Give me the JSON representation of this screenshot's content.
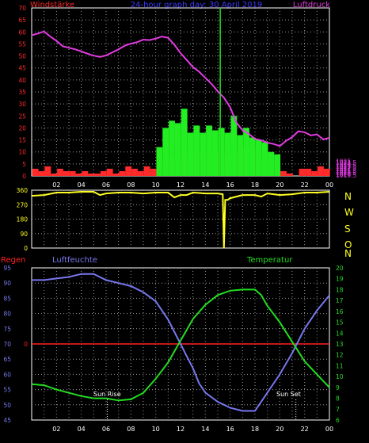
{
  "colors": {
    "background": "#000000",
    "frame": "#ffffff",
    "grid": "#9a9a9a",
    "wind_speed": "#ff2a2a",
    "wind_gust": "#22ee22",
    "pressure": "#e23be2",
    "wind_direction": "#ffff22",
    "humidity": "#7777ee",
    "temperature": "#22dd22",
    "rain": "#ff2020",
    "now_marker": "#22dd22",
    "date_title": "#3a3aff",
    "direction_letters": "#ffff22",
    "sun_labels": "#ffffff"
  },
  "header": {
    "wind_label": "Windstärke",
    "title": "24-hour graph day: 30 April 2019",
    "pressure_label": "Luftdruck"
  },
  "lower_header": {
    "rain_label": "Regen",
    "humidity_label": "Luftfeuchte",
    "temperature_label": "Temperatur"
  },
  "annotations": {
    "sun_rise": "Sun Rise",
    "sun_set": "Sun Set"
  },
  "direction_letters": [
    "N",
    "W",
    "S",
    "O",
    "N"
  ],
  "chart_data": [
    {
      "id": "wind-pressure",
      "type": "bar",
      "xlabel": "",
      "xlim": [
        0,
        24
      ],
      "x_ticks": [
        "02",
        "04",
        "06",
        "08",
        "10",
        "12",
        "14",
        "16",
        "18",
        "20",
        "22",
        "00"
      ],
      "ylim_left": [
        0,
        70
      ],
      "y_ticks_left": [
        "0",
        "5",
        "10",
        "15",
        "20",
        "25",
        "30",
        "35",
        "40",
        "45",
        "50",
        "55",
        "60",
        "65",
        "70"
      ],
      "ylabel_left": "Windstärke",
      "ylim_right": [
        1019.25,
        1085.25
      ],
      "y_ticks_right": [
        "1019.5",
        "1020",
        "1020.5",
        "1021",
        "1021.5",
        "1022",
        "1022.5",
        "1023",
        "1023.5",
        "1024",
        "1024.5",
        "1025"
      ],
      "y_ticks_right_values": [
        1019.5,
        1020,
        1020.5,
        1021,
        1021.5,
        1022,
        1022.5,
        1023,
        1023.5,
        1024,
        1024.5,
        1025
      ],
      "ylabel_right": "Luftdruck",
      "now_marker_hour": 15.2,
      "series": [
        {
          "name": "Windstärke",
          "kind": "bars",
          "x": [
            0.3,
            0.8,
            1.3,
            1.8,
            2.3,
            2.8,
            3.3,
            3.8,
            4.3,
            4.8,
            5.3,
            5.8,
            6.3,
            6.8,
            7.3,
            7.8,
            8.3,
            8.8,
            9.3,
            9.8,
            10.3,
            10.8,
            11.3,
            11.8,
            12.3,
            12.8,
            13.3,
            13.8,
            14.3,
            14.8,
            15.3,
            15.8,
            16.3,
            16.8,
            17.3,
            17.8,
            18.3,
            18.8,
            19.3,
            19.8,
            20.3,
            20.8,
            21.3,
            21.8,
            22.3,
            22.8,
            23.3,
            23.8
          ],
          "values": [
            3,
            2,
            4,
            1,
            3,
            2,
            2,
            1,
            2,
            1,
            1,
            2,
            3,
            1,
            2,
            4,
            3,
            2,
            4,
            3,
            5,
            7,
            8,
            6,
            12,
            9,
            10,
            8,
            8,
            10,
            12,
            9,
            11,
            10,
            12,
            11,
            9,
            7,
            6,
            5,
            2,
            1,
            0,
            3,
            3,
            2,
            4,
            3
          ]
        },
        {
          "name": "Böen",
          "kind": "bars",
          "x": [
            0.3,
            0.8,
            1.3,
            1.8,
            2.3,
            2.8,
            3.3,
            3.8,
            4.3,
            4.8,
            5.3,
            5.8,
            6.3,
            6.8,
            7.3,
            7.8,
            8.3,
            8.8,
            9.3,
            9.8,
            10.3,
            10.8,
            11.3,
            11.8,
            12.3,
            12.8,
            13.3,
            13.8,
            14.3,
            14.8,
            15.3,
            15.8,
            16.3,
            16.8,
            17.3,
            17.8,
            18.3,
            18.8,
            19.3,
            19.8,
            20.3,
            20.8,
            21.3,
            21.8,
            22.3,
            22.8,
            23.3,
            23.8
          ],
          "values": [
            0,
            0,
            0,
            0,
            0,
            0,
            0,
            0,
            0,
            0,
            0,
            0,
            0,
            0,
            0,
            0,
            0,
            0,
            0,
            0,
            12,
            20,
            23,
            22,
            28,
            18,
            21,
            18,
            21,
            19,
            20,
            18,
            25,
            17,
            20,
            16,
            15,
            14,
            10,
            9,
            0,
            0,
            0,
            0,
            0,
            0,
            0,
            0
          ]
        },
        {
          "name": "Luftdruck",
          "kind": "line",
          "x": [
            0,
            0.5,
            1,
            1.5,
            2,
            2.5,
            3,
            3.5,
            4,
            4.5,
            5,
            5.5,
            6,
            6.5,
            7,
            7.5,
            8,
            8.5,
            9,
            9.5,
            10,
            10.5,
            11,
            11.5,
            12,
            12.5,
            13,
            13.5,
            14,
            14.5,
            15,
            15.5,
            16,
            16.5,
            17,
            17.5,
            18,
            18.5,
            19,
            19.5,
            20,
            20.5,
            21,
            21.5,
            22,
            22.5,
            23,
            23.5,
            24
          ],
          "values": [
            1074.5,
            1075.2,
            1076.0,
            1074.0,
            1072.3,
            1070.2,
            1069.6,
            1069.0,
            1068.2,
            1067.3,
            1066.5,
            1066.0,
            1066.6,
            1067.8,
            1069.0,
            1070.4,
            1071.2,
            1071.8,
            1072.8,
            1072.6,
            1073.2,
            1074.0,
            1073.5,
            1070.8,
            1067.5,
            1064.8,
            1062.0,
            1060.2,
            1057.8,
            1055.4,
            1052.5,
            1050.0,
            1046.2,
            1040.2,
            1037.2,
            1035.8,
            1033.8,
            1033.3,
            1032.3,
            1031.8,
            1031.0,
            1033.0,
            1034.5,
            1036.8,
            1036.4,
            1035.2,
            1035.6,
            1033.6,
            1034.2
          ]
        }
      ]
    },
    {
      "id": "wind-direction",
      "type": "line",
      "xlim": [
        0,
        24
      ],
      "ylim": [
        0,
        360
      ],
      "y_ticks": [
        "0",
        "90",
        "180",
        "270",
        "360"
      ],
      "series": [
        {
          "name": "Windrichtung",
          "x": [
            0,
            1,
            2,
            3,
            4,
            5,
            5.5,
            6,
            7,
            8,
            9,
            10,
            11,
            11.5,
            12,
            12.5,
            13,
            14,
            15,
            15.4,
            15.5,
            15.6,
            15.8,
            16,
            17,
            18,
            18.5,
            19,
            20,
            21,
            22,
            23,
            24
          ],
          "values": [
            325,
            330,
            345,
            345,
            350,
            350,
            330,
            340,
            345,
            345,
            340,
            345,
            345,
            315,
            330,
            330,
            345,
            340,
            340,
            335,
            0,
            300,
            300,
            310,
            330,
            330,
            320,
            340,
            330,
            335,
            345,
            345,
            350
          ]
        }
      ]
    },
    {
      "id": "humidity-temperature",
      "type": "line",
      "xlim": [
        0,
        24
      ],
      "x_ticks": [
        "02",
        "04",
        "06",
        "08",
        "10",
        "12",
        "14",
        "16",
        "18",
        "20",
        "22",
        "00"
      ],
      "ylim_left": [
        45,
        95
      ],
      "y_ticks_left": [
        "45",
        "50",
        "55",
        "60",
        "65",
        "70",
        "75",
        "80",
        "85",
        "90",
        "95"
      ],
      "ylabel_left": "Luftfeuchte",
      "ylim_right": [
        6,
        20
      ],
      "y_ticks_right": [
        "6",
        "7",
        "8",
        "9",
        "10",
        "11",
        "12",
        "13",
        "14",
        "15",
        "16",
        "17",
        "18",
        "19",
        "20"
      ],
      "ylabel_right": "Temperatur",
      "rain_level": 70,
      "sun_rise_hour": 6.1,
      "sun_set_hour": 21.3,
      "series": [
        {
          "name": "Luftfeuchte",
          "x": [
            0,
            1,
            2,
            3,
            4,
            5,
            6,
            7,
            8,
            9,
            10,
            11,
            12,
            12.5,
            13,
            13.5,
            14,
            15,
            16,
            17,
            18,
            19,
            20,
            21,
            22,
            23,
            24
          ],
          "values": [
            91,
            91,
            91.5,
            92,
            93,
            93,
            91,
            90,
            89,
            87,
            84,
            78,
            70,
            66,
            62,
            57,
            54,
            51,
            49,
            48,
            48,
            54,
            60,
            67,
            75,
            81,
            86
          ]
        },
        {
          "name": "Temperatur",
          "x": [
            0,
            1,
            2,
            3,
            4,
            5,
            6,
            7,
            8,
            9,
            10,
            11,
            12,
            13,
            14,
            15,
            16,
            17,
            18,
            18.5,
            19,
            20,
            21,
            22,
            23,
            24
          ],
          "values": [
            9.3,
            9.2,
            8.8,
            8.5,
            8.2,
            8.0,
            8.0,
            7.8,
            7.9,
            8.5,
            9.8,
            11.3,
            13.3,
            15.3,
            16.6,
            17.5,
            17.9,
            18.0,
            18.0,
            17.5,
            16.5,
            15.0,
            13.2,
            11.4,
            10.2,
            9.0
          ]
        }
      ]
    }
  ]
}
